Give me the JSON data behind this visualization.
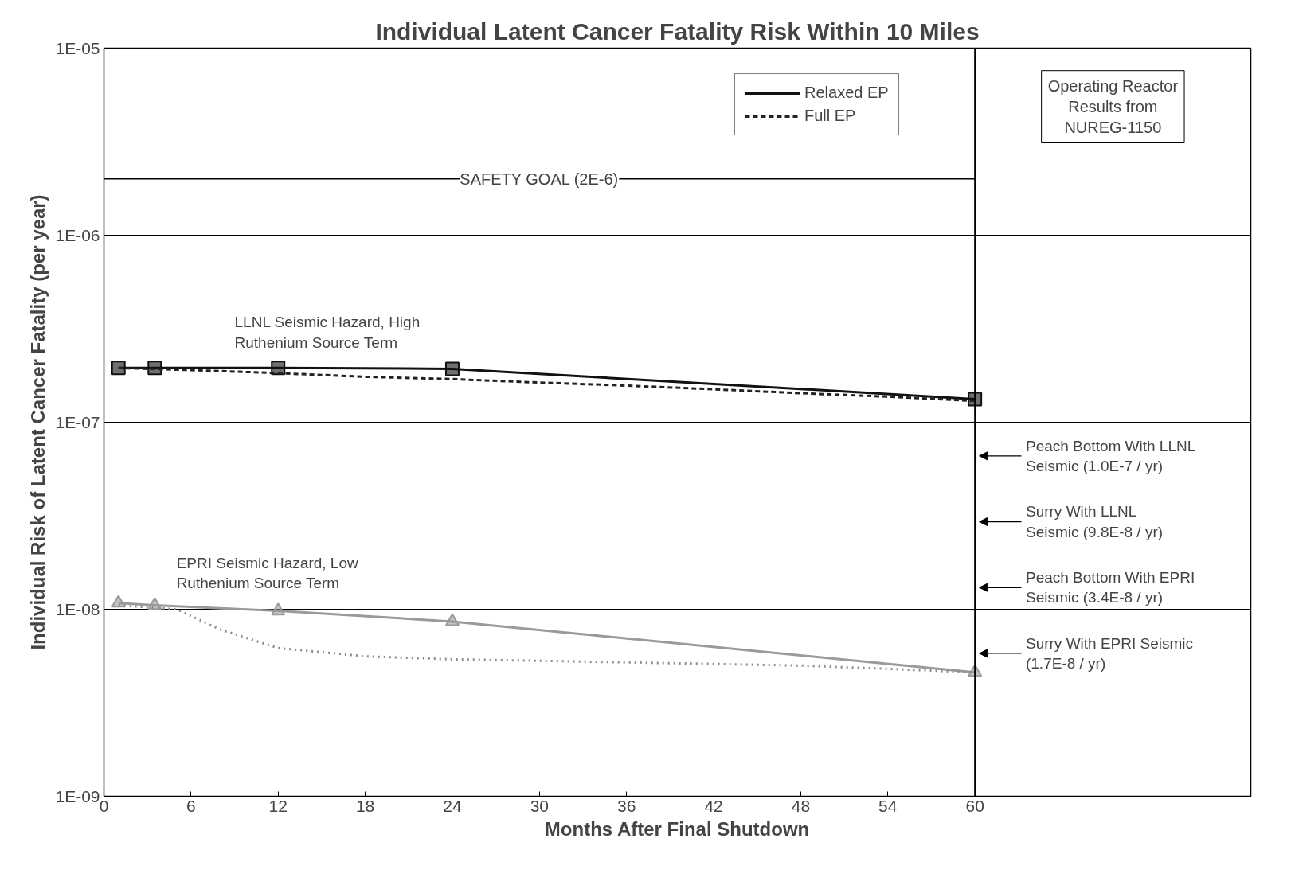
{
  "chart_data": {
    "type": "line",
    "title": "Individual Latent Cancer Fatality Risk Within 10 Miles",
    "xlabel": "Months After Final Shutdown",
    "ylabel": "Individual Risk of Latent Cancer Fatality (per year)",
    "log": "y",
    "xlim": [
      0,
      79
    ],
    "xticks": [
      0,
      6,
      12,
      18,
      24,
      30,
      36,
      42,
      48,
      54,
      60
    ],
    "ylim": [
      1e-09,
      1e-05
    ],
    "yticks": [
      {
        "value": 1e-09,
        "label": "1E-09"
      },
      {
        "value": 1e-08,
        "label": "1E-08"
      },
      {
        "value": 1e-07,
        "label": "1E-07"
      },
      {
        "value": 1e-06,
        "label": "1E-06"
      },
      {
        "value": 1e-05,
        "label": "1E-05"
      }
    ],
    "grid": "y",
    "legend": "top right",
    "series": [
      {
        "name": "Relaxed EP",
        "color": "#111111",
        "marker": "square",
        "line_style": "solid",
        "x": [
          1,
          3.5,
          12,
          24,
          60
        ],
        "values": [
          1.95e-07,
          1.95e-07,
          1.95e-07,
          1.93e-07,
          1.33e-07
        ]
      },
      {
        "name": "Full EP",
        "color": "#222222",
        "marker": "none",
        "line_style": "dashed",
        "x": [
          1,
          6,
          12,
          18,
          24,
          30,
          36,
          42,
          48,
          54,
          60
        ],
        "values": [
          1.95e-07,
          1.9e-07,
          1.83e-07,
          1.75e-07,
          1.7e-07,
          1.63e-07,
          1.57e-07,
          1.5e-07,
          1.43e-07,
          1.37e-07,
          1.3e-07
        ]
      },
      {
        "color": "#9a9a9a",
        "marker": "triangle",
        "line_style": "solid",
        "x": [
          1,
          3.5,
          12,
          24,
          60
        ],
        "values": [
          1.08e-08,
          1.05e-08,
          9.8e-09,
          8.6e-09,
          4.6e-09
        ]
      },
      {
        "color": "#8a8a8a",
        "marker": "none",
        "line_style": "dotted",
        "x": [
          1,
          5,
          8,
          12,
          18,
          24,
          30,
          36,
          42,
          48,
          54,
          60
        ],
        "values": [
          1.05e-08,
          1e-08,
          7.8e-09,
          6.2e-09,
          5.6e-09,
          5.4e-09,
          5.3e-09,
          5.2e-09,
          5.1e-09,
          5e-09,
          4.8e-09,
          4.6e-09
        ]
      }
    ],
    "ref_lines": [
      {
        "axis": "y",
        "value": 2e-06,
        "label": "SAFETY GOAL (2E-6)"
      },
      {
        "axis": "x",
        "value": 60
      }
    ],
    "annotations": [
      {
        "text": "LLNL Seismic Hazard, High\nRuthenium Source Term",
        "x": 9,
        "y": 1.93e-07
      },
      {
        "text": "EPRI Seismic Hazard, Low\nRuthenium Source Term",
        "x": 5,
        "y": 1e-08
      },
      "Operating Reactor\nResults from\nNUREG-1150",
      "Peach Bottom With LLNL\nSeismic (1.0E-7 / yr)",
      "Surry With LLNL\nSeismic (9.8E-8 / yr)",
      "Peach Bottom With EPRI\nSeismic (3.4E-8 / yr)",
      "Surry With EPRI Seismic\n(1.7E-8 / yr)"
    ]
  }
}
